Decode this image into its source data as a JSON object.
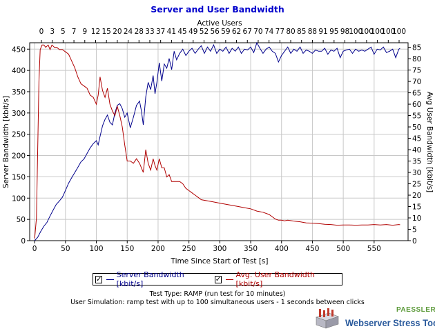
{
  "chart_data": {
    "type": "line",
    "title": "Server and User Bandwidth",
    "top_axis_label": "Active Users",
    "top_tick_labels": [
      "0",
      "3",
      "5",
      "7",
      "9",
      "12",
      "15",
      "20",
      "24",
      "28",
      "33",
      "37",
      "41",
      "45",
      "49",
      "52",
      "56",
      "59",
      "62",
      "67",
      "70",
      "74",
      "77",
      "80",
      "85",
      "88",
      "91",
      "95",
      "98",
      "100",
      "100",
      "100",
      "100",
      "100"
    ],
    "xlabel": "Time Since Start of Test [s]",
    "ylabel": "Server Bandwidth [kbit/s]",
    "y2label": "Avg User Bandwidth [kbit/s]",
    "xlim": [
      -8,
      605
    ],
    "ylim": [
      0,
      465
    ],
    "y2lim": [
      0,
      87
    ],
    "x_ticks": [
      0,
      50,
      100,
      150,
      200,
      250,
      300,
      350,
      400,
      450,
      500,
      550
    ],
    "y_ticks": [
      0,
      50,
      100,
      150,
      200,
      250,
      300,
      350,
      400,
      450
    ],
    "y2_ticks": [
      0,
      5,
      10,
      15,
      20,
      25,
      30,
      35,
      40,
      45,
      50,
      55,
      60,
      65,
      70,
      75,
      80,
      85
    ],
    "grid": true,
    "legend_position": "bottom",
    "series": [
      {
        "name": "Server Bandwidth [kbit/s]",
        "color": "#00008b",
        "axis": "left",
        "points": [
          [
            0,
            0
          ],
          [
            5,
            8
          ],
          [
            10,
            22
          ],
          [
            15,
            34
          ],
          [
            20,
            43
          ],
          [
            25,
            58
          ],
          [
            30,
            72
          ],
          [
            35,
            85
          ],
          [
            40,
            93
          ],
          [
            45,
            102
          ],
          [
            50,
            118
          ],
          [
            55,
            135
          ],
          [
            60,
            148
          ],
          [
            65,
            160
          ],
          [
            70,
            172
          ],
          [
            75,
            185
          ],
          [
            80,
            192
          ],
          [
            85,
            205
          ],
          [
            90,
            218
          ],
          [
            95,
            228
          ],
          [
            100,
            235
          ],
          [
            103,
            225
          ],
          [
            106,
            245
          ],
          [
            110,
            270
          ],
          [
            114,
            285
          ],
          [
            118,
            295
          ],
          [
            122,
            278
          ],
          [
            126,
            272
          ],
          [
            130,
            300
          ],
          [
            134,
            318
          ],
          [
            138,
            322
          ],
          [
            142,
            310
          ],
          [
            146,
            290
          ],
          [
            150,
            300
          ],
          [
            155,
            265
          ],
          [
            160,
            290
          ],
          [
            165,
            318
          ],
          [
            170,
            328
          ],
          [
            173,
            305
          ],
          [
            176,
            272
          ],
          [
            180,
            338
          ],
          [
            184,
            372
          ],
          [
            188,
            355
          ],
          [
            192,
            388
          ],
          [
            195,
            345
          ],
          [
            198,
            372
          ],
          [
            202,
            418
          ],
          [
            206,
            375
          ],
          [
            210,
            415
          ],
          [
            214,
            405
          ],
          [
            218,
            428
          ],
          [
            222,
            402
          ],
          [
            226,
            445
          ],
          [
            230,
            425
          ],
          [
            235,
            440
          ],
          [
            240,
            450
          ],
          [
            245,
            435
          ],
          [
            250,
            445
          ],
          [
            255,
            452
          ],
          [
            260,
            440
          ],
          [
            265,
            450
          ],
          [
            270,
            458
          ],
          [
            275,
            440
          ],
          [
            280,
            455
          ],
          [
            285,
            445
          ],
          [
            290,
            460
          ],
          [
            295,
            440
          ],
          [
            300,
            450
          ],
          [
            305,
            445
          ],
          [
            310,
            455
          ],
          [
            315,
            440
          ],
          [
            320,
            452
          ],
          [
            325,
            445
          ],
          [
            330,
            455
          ],
          [
            335,
            440
          ],
          [
            340,
            450
          ],
          [
            345,
            448
          ],
          [
            350,
            455
          ],
          [
            355,
            442
          ],
          [
            360,
            465
          ],
          [
            365,
            452
          ],
          [
            370,
            440
          ],
          [
            375,
            450
          ],
          [
            380,
            455
          ],
          [
            385,
            445
          ],
          [
            390,
            440
          ],
          [
            395,
            420
          ],
          [
            400,
            435
          ],
          [
            405,
            445
          ],
          [
            410,
            455
          ],
          [
            415,
            440
          ],
          [
            420,
            450
          ],
          [
            425,
            445
          ],
          [
            430,
            455
          ],
          [
            435,
            440
          ],
          [
            440,
            448
          ],
          [
            445,
            445
          ],
          [
            450,
            440
          ],
          [
            455,
            448
          ],
          [
            460,
            445
          ],
          [
            465,
            445
          ],
          [
            470,
            452
          ],
          [
            475,
            438
          ],
          [
            480,
            448
          ],
          [
            485,
            445
          ],
          [
            490,
            452
          ],
          [
            495,
            430
          ],
          [
            500,
            445
          ],
          [
            505,
            448
          ],
          [
            510,
            450
          ],
          [
            515,
            440
          ],
          [
            520,
            450
          ],
          [
            525,
            445
          ],
          [
            530,
            448
          ],
          [
            535,
            445
          ],
          [
            540,
            450
          ],
          [
            545,
            455
          ],
          [
            550,
            438
          ],
          [
            555,
            450
          ],
          [
            560,
            448
          ],
          [
            565,
            455
          ],
          [
            570,
            442
          ],
          [
            575,
            445
          ],
          [
            580,
            450
          ],
          [
            585,
            430
          ],
          [
            590,
            450
          ],
          [
            592,
            452
          ]
        ]
      },
      {
        "name": "Avg. User Bandwidth [kbit/s]",
        "color": "#b00000",
        "axis": "right",
        "points": [
          [
            0,
            1
          ],
          [
            3,
            10
          ],
          [
            5,
            40
          ],
          [
            7,
            70
          ],
          [
            9,
            84
          ],
          [
            12,
            86
          ],
          [
            15,
            86
          ],
          [
            18,
            85
          ],
          [
            22,
            86
          ],
          [
            25,
            84
          ],
          [
            28,
            86
          ],
          [
            32,
            85
          ],
          [
            36,
            85
          ],
          [
            40,
            84
          ],
          [
            45,
            84
          ],
          [
            50,
            83
          ],
          [
            55,
            82
          ],
          [
            60,
            79
          ],
          [
            65,
            76
          ],
          [
            70,
            72
          ],
          [
            75,
            69
          ],
          [
            80,
            68
          ],
          [
            85,
            67
          ],
          [
            90,
            64
          ],
          [
            95,
            63
          ],
          [
            100,
            60
          ],
          [
            103,
            64
          ],
          [
            106,
            72
          ],
          [
            110,
            66
          ],
          [
            114,
            63
          ],
          [
            118,
            67
          ],
          [
            122,
            60
          ],
          [
            126,
            57
          ],
          [
            130,
            55
          ],
          [
            134,
            59
          ],
          [
            138,
            55
          ],
          [
            142,
            50
          ],
          [
            146,
            42
          ],
          [
            150,
            35
          ],
          [
            155,
            35
          ],
          [
            160,
            34
          ],
          [
            165,
            36
          ],
          [
            170,
            34
          ],
          [
            173,
            32
          ],
          [
            176,
            30
          ],
          [
            180,
            40
          ],
          [
            184,
            34
          ],
          [
            188,
            31
          ],
          [
            192,
            36
          ],
          [
            195,
            33
          ],
          [
            198,
            31
          ],
          [
            202,
            36
          ],
          [
            206,
            32
          ],
          [
            210,
            32
          ],
          [
            214,
            28
          ],
          [
            218,
            29
          ],
          [
            222,
            26
          ],
          [
            226,
            26
          ],
          [
            230,
            26
          ],
          [
            235,
            26
          ],
          [
            240,
            25
          ],
          [
            245,
            23
          ],
          [
            250,
            22
          ],
          [
            255,
            21
          ],
          [
            260,
            20
          ],
          [
            265,
            19
          ],
          [
            270,
            18
          ],
          [
            280,
            17.5
          ],
          [
            290,
            17
          ],
          [
            300,
            16.5
          ],
          [
            310,
            16
          ],
          [
            320,
            15.5
          ],
          [
            330,
            15
          ],
          [
            340,
            14.5
          ],
          [
            350,
            14
          ],
          [
            360,
            13
          ],
          [
            370,
            12.5
          ],
          [
            380,
            11.5
          ],
          [
            385,
            10.5
          ],
          [
            390,
            9.5
          ],
          [
            395,
            9
          ],
          [
            400,
            9
          ],
          [
            405,
            8.7
          ],
          [
            410,
            9
          ],
          [
            420,
            8.6
          ],
          [
            430,
            8.3
          ],
          [
            440,
            7.8
          ],
          [
            450,
            7.7
          ],
          [
            460,
            7.5
          ],
          [
            470,
            7.2
          ],
          [
            480,
            7.1
          ],
          [
            490,
            6.8
          ],
          [
            500,
            6.9
          ],
          [
            510,
            6.9
          ],
          [
            520,
            6.8
          ],
          [
            530,
            6.9
          ],
          [
            540,
            6.9
          ],
          [
            550,
            7.1
          ],
          [
            560,
            6.9
          ],
          [
            570,
            7.1
          ],
          [
            580,
            6.8
          ],
          [
            590,
            7.1
          ],
          [
            592,
            7.0
          ]
        ]
      }
    ]
  },
  "legend": {
    "check_glyph": "✓",
    "items": [
      "Server Bandwidth [kbit/s]",
      "Avg. User Bandwidth [kbit/s]"
    ]
  },
  "footer": {
    "test_type": "Test Type: RAMP (run test for 10 minutes)",
    "simulation": "User Simulation: ramp test with up to 100 simultaneous users - 1 seconds between clicks"
  },
  "branding": {
    "company": "PAESSLER",
    "product": "Webserver Stress Tool",
    "logo_icon": "server-rack-icon"
  }
}
